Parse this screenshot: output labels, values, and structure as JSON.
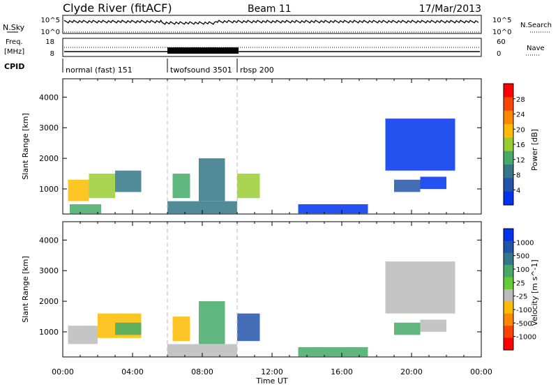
{
  "header": {
    "station": "Clyde River (fitACF)",
    "beam": "Beam 11",
    "date": "17/Mar/2013"
  },
  "noise_panel": {
    "left_label": "N.Sky",
    "right_label": "N.Search",
    "tick_top": "10^5",
    "tick_bottom": "10^0"
  },
  "freq_panel": {
    "left_label_line1": "Freq.",
    "left_label_line2": "[MHz]",
    "right_label": "Nave",
    "left_ticks": [
      "18",
      "8"
    ],
    "right_ticks": [
      "60",
      "0"
    ]
  },
  "cpid": {
    "label": "CPID",
    "segments": [
      {
        "name": "normal (fast) 151",
        "start_hour": 0,
        "end_hour": 6
      },
      {
        "name": "twofsound 3501",
        "start_hour": 6,
        "end_hour": 10
      },
      {
        "name": "rbsp 200",
        "start_hour": 10,
        "end_hour": 24
      }
    ]
  },
  "axes": {
    "ylabel": "Slant Range [km]",
    "xlabel": "Time UT",
    "yticks": [
      1000,
      2000,
      3000,
      4000
    ],
    "xtick_labels": [
      "00:00",
      "04:00",
      "08:00",
      "12:00",
      "16:00",
      "20:00",
      "00:00"
    ]
  },
  "chart_data": [
    {
      "type": "heatmap",
      "name": "power",
      "colorbar_label": "Power [dB]",
      "colorbar_ticks": [
        "28",
        "24",
        "20",
        "16",
        "12",
        "8",
        "4"
      ],
      "colorbar_colors": [
        "#ff0000",
        "#ff4400",
        "#ff8800",
        "#ffbb00",
        "#99cc33",
        "#44aa66",
        "#337788",
        "#2255aa",
        "#0033ee"
      ],
      "x_range_hours": [
        0,
        24
      ],
      "y_range_km": [
        180,
        4600
      ],
      "patches": [
        {
          "t0": 0.3,
          "t1": 1.5,
          "r0": 600,
          "r1": 1300,
          "level": 5
        },
        {
          "t0": 1.5,
          "t1": 3.0,
          "r0": 700,
          "r1": 1500,
          "level": 4
        },
        {
          "t0": 3.0,
          "t1": 4.5,
          "r0": 900,
          "r1": 1600,
          "level": 2
        },
        {
          "t0": 0.4,
          "t1": 2.2,
          "r0": 200,
          "r1": 500,
          "level": 3
        },
        {
          "t0": 6.3,
          "t1": 7.3,
          "r0": 700,
          "r1": 1500,
          "level": 3
        },
        {
          "t0": 7.8,
          "t1": 9.3,
          "r0": 600,
          "r1": 2000,
          "level": 2
        },
        {
          "t0": 10.0,
          "t1": 11.3,
          "r0": 700,
          "r1": 1500,
          "level": 4
        },
        {
          "t0": 6.0,
          "t1": 10.0,
          "r0": 200,
          "r1": 600,
          "level": 2
        },
        {
          "t0": 13.5,
          "t1": 17.5,
          "r0": 200,
          "r1": 500,
          "level": 0
        },
        {
          "t0": 19.0,
          "t1": 20.5,
          "r0": 900,
          "r1": 1300,
          "level": 1
        },
        {
          "t0": 20.5,
          "t1": 22.0,
          "r0": 1000,
          "r1": 1400,
          "level": 0
        },
        {
          "t0": 18.5,
          "t1": 22.5,
          "r0": 1600,
          "r1": 3300,
          "level": 0
        }
      ]
    },
    {
      "type": "heatmap",
      "name": "velocity",
      "colorbar_label": "Velocity [m s^-1]",
      "colorbar_ticks": [
        "1000",
        "500",
        "100",
        "25",
        "-25",
        "-100",
        "-500",
        "-1000"
      ],
      "colorbar_colors": [
        "#0033ee",
        "#2255aa",
        "#337788",
        "#44aa66",
        "#66cc33",
        "#bbbbbb",
        "#ffbb00",
        "#ff8800",
        "#ff4400",
        "#ff0000"
      ],
      "x_range_hours": [
        0,
        24
      ],
      "y_range_km": [
        180,
        4600
      ],
      "patches": [
        {
          "t0": 0.3,
          "t1": 2.0,
          "r0": 600,
          "r1": 1200,
          "level": 4
        },
        {
          "t0": 2.0,
          "t1": 4.5,
          "r0": 800,
          "r1": 1600,
          "level": 3
        },
        {
          "t0": 3.0,
          "t1": 4.5,
          "r0": 900,
          "r1": 1300,
          "level": 6
        },
        {
          "t0": 6.3,
          "t1": 7.3,
          "r0": 700,
          "r1": 1500,
          "level": 3
        },
        {
          "t0": 7.8,
          "t1": 9.3,
          "r0": 600,
          "r1": 2000,
          "level": 6
        },
        {
          "t0": 10.0,
          "t1": 11.3,
          "r0": 700,
          "r1": 1600,
          "level": 8
        },
        {
          "t0": 6.0,
          "t1": 10.0,
          "r0": 200,
          "r1": 600,
          "level": 4
        },
        {
          "t0": 13.5,
          "t1": 17.5,
          "r0": 200,
          "r1": 500,
          "level": 6
        },
        {
          "t0": 19.0,
          "t1": 20.5,
          "r0": 900,
          "r1": 1300,
          "level": 6
        },
        {
          "t0": 20.5,
          "t1": 22.0,
          "r0": 1000,
          "r1": 1400,
          "level": 4
        },
        {
          "t0": 18.5,
          "t1": 22.5,
          "r0": 1600,
          "r1": 3300,
          "level": 4
        }
      ]
    }
  ]
}
